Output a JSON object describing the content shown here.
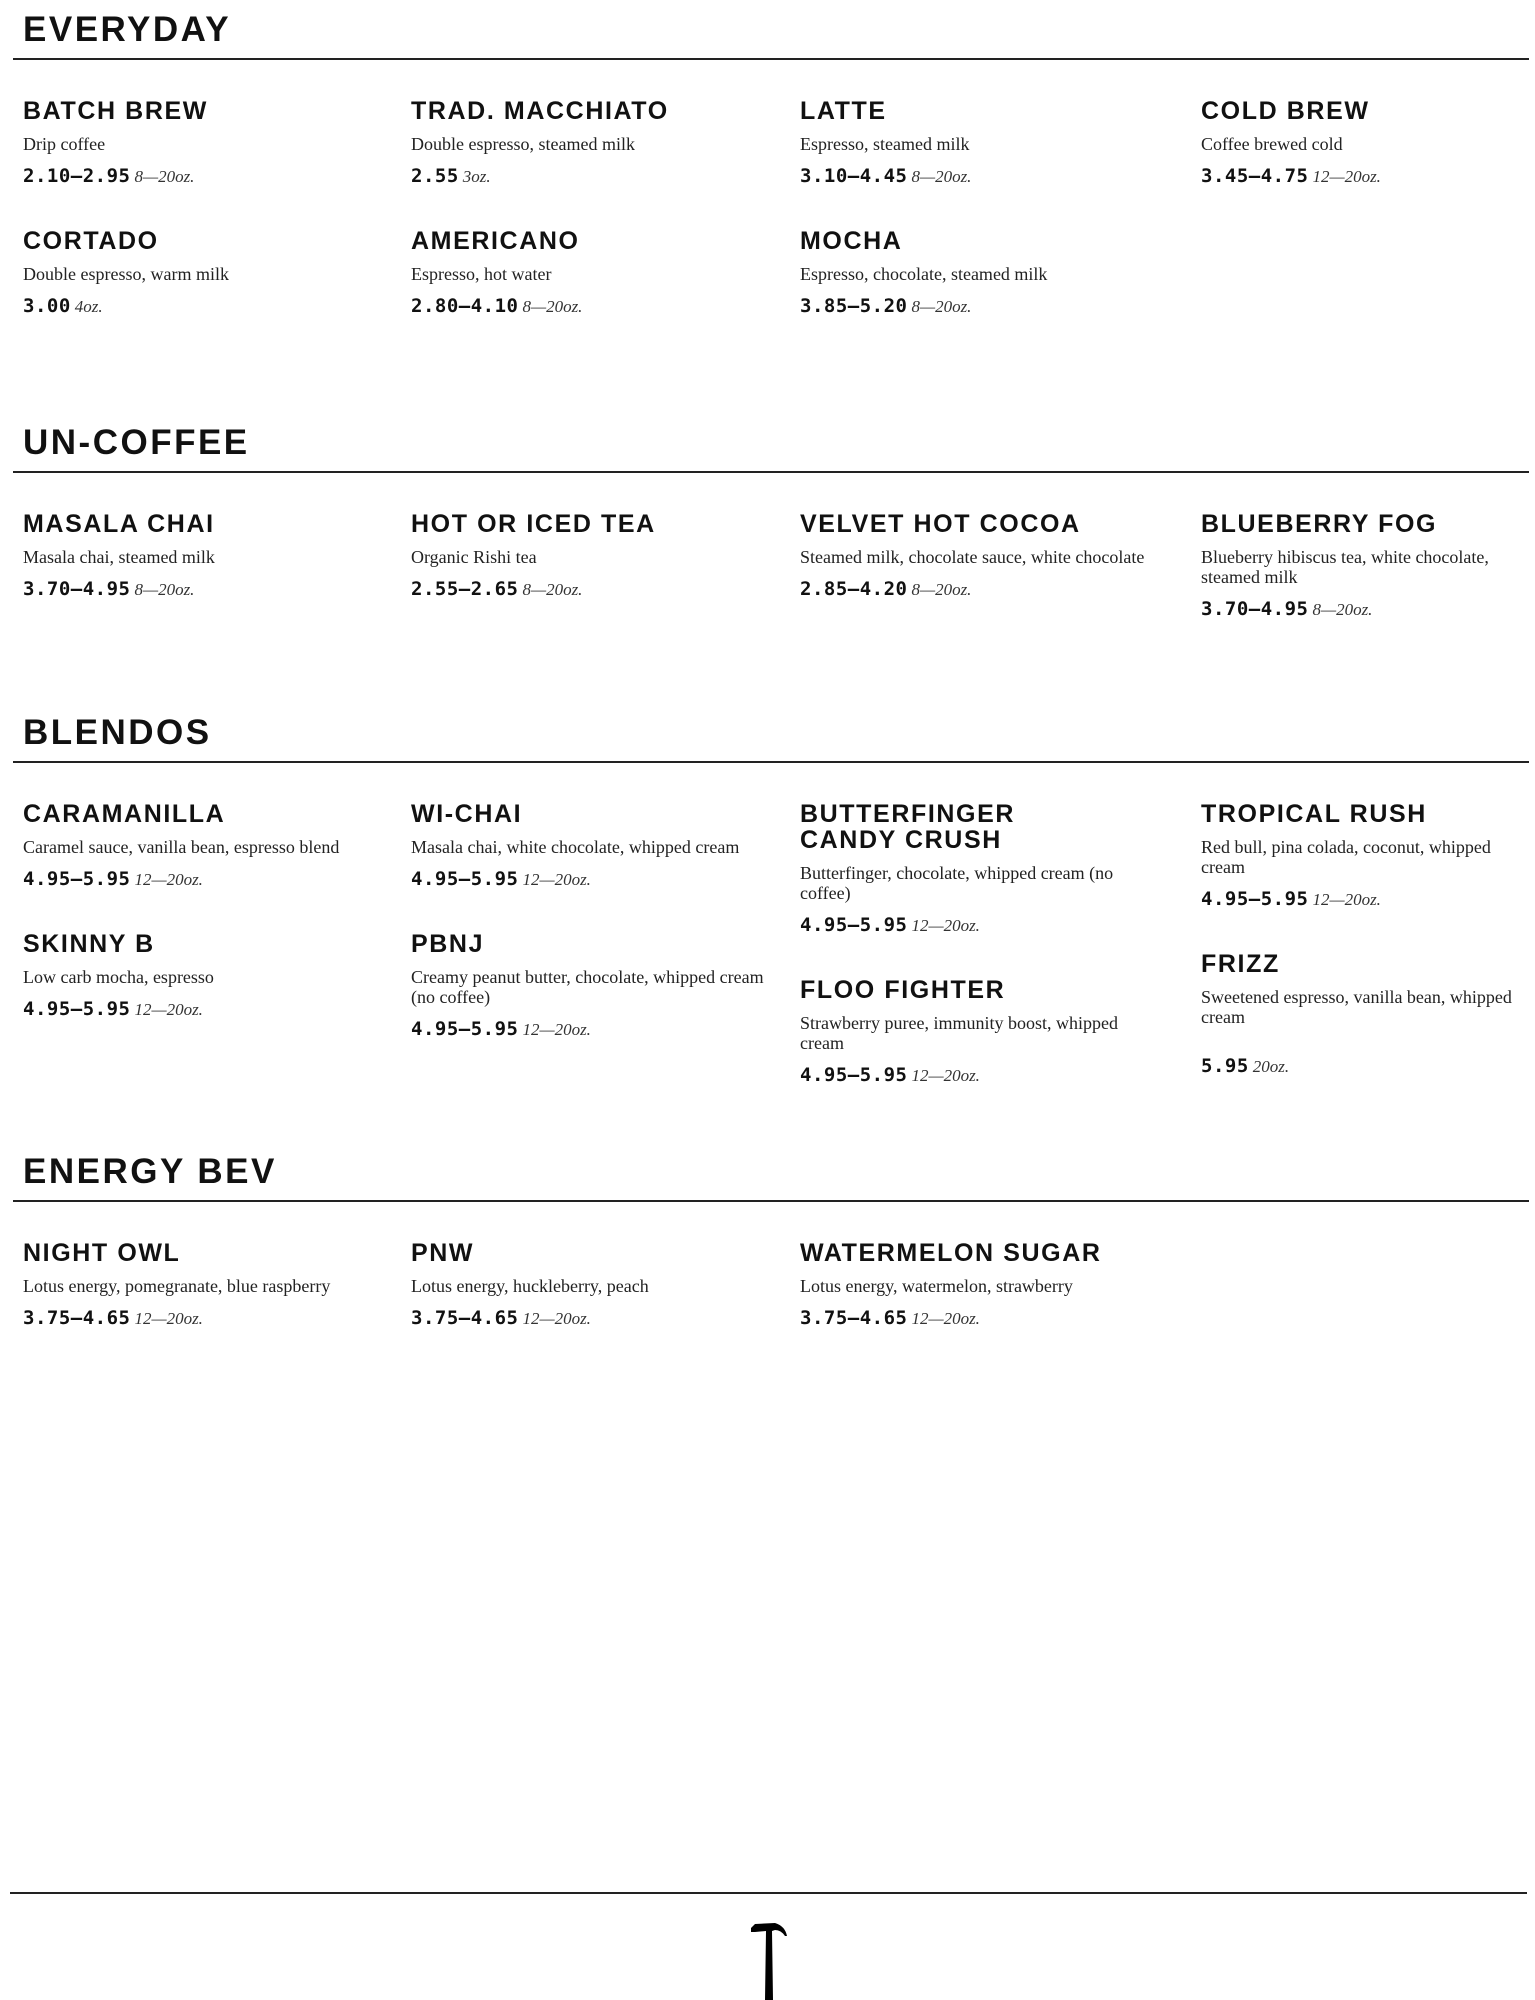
{
  "sections": [
    {
      "title": "EVERYDAY",
      "columns": [
        [
          {
            "name": "BATCH BREW",
            "desc": "Drip coffee",
            "price": "2.10–2.95",
            "size": "8—20oz."
          },
          {
            "name": "CORTADO",
            "desc": "Double espresso, warm milk",
            "price": "3.00",
            "size": "4oz."
          }
        ],
        [
          {
            "name": "TRAD. MACCHIATO",
            "desc": "Double espresso, steamed milk",
            "price": "2.55",
            "size": "3oz."
          },
          {
            "name": "AMERICANO",
            "desc": "Espresso, hot water",
            "price": "2.80–4.10",
            "size": "8—20oz."
          }
        ],
        [
          {
            "name": "LATTE",
            "desc": "Espresso, steamed milk",
            "price": "3.10–4.45",
            "size": "8—20oz."
          },
          {
            "name": "MOCHA",
            "desc": "Espresso, chocolate, steamed milk",
            "price": "3.85–5.20",
            "size": "8—20oz."
          }
        ],
        [
          {
            "name": "COLD BREW",
            "desc": "Coffee brewed cold",
            "price": "3.45–4.75",
            "size": "12—20oz."
          }
        ]
      ]
    },
    {
      "title": "UN-COFFEE",
      "columns": [
        [
          {
            "name": "MASALA CHAI",
            "desc": "Masala chai, steamed milk",
            "price": "3.70–4.95",
            "size": "8—20oz."
          }
        ],
        [
          {
            "name": "HOT OR ICED TEA",
            "desc": "Organic Rishi tea",
            "price": "2.55–2.65",
            "size": "8—20oz."
          }
        ],
        [
          {
            "name": "VELVET HOT COCOA",
            "desc": "Steamed milk, chocolate sauce, white chocolate",
            "price": "2.85–4.20",
            "size": "8—20oz."
          }
        ],
        [
          {
            "name": "BLUEBERRY FOG",
            "desc": "Blueberry hibiscus tea, white chocolate, steamed milk",
            "price": "3.70–4.95",
            "size": "8—20oz."
          }
        ]
      ]
    },
    {
      "title": "BLENDOS",
      "columns": [
        [
          {
            "name": "CARAMANILLA",
            "desc": "Caramel sauce, vanilla bean, espresso blend",
            "price": "4.95–5.95",
            "size": "12—20oz."
          },
          {
            "name": "SKINNY B",
            "desc": "Low carb mocha, espresso",
            "price": "4.95–5.95",
            "size": "12—20oz."
          }
        ],
        [
          {
            "name": "WI-CHAI",
            "desc": "Masala chai, white chocolate, whipped cream",
            "price": "4.95–5.95",
            "size": "12—20oz."
          },
          {
            "name": "PBNJ",
            "desc": "Creamy peanut butter, chocolate, whipped cream (no coffee)",
            "price": "4.95–5.95",
            "size": "12—20oz."
          }
        ],
        [
          {
            "name": "BUTTERFINGER CANDY CRUSH",
            "desc": "Butterfinger, chocolate, whipped cream (no coffee)",
            "price": "4.95–5.95",
            "size": "12—20oz."
          },
          {
            "name": "FLOO FIGHTER",
            "desc": "Strawberry puree, immunity boost, whipped cream",
            "price": "4.95–5.95",
            "size": "12—20oz."
          }
        ],
        [
          {
            "name": "TROPICAL RUSH",
            "desc": "Red bull, pina colada, coconut, whipped cream",
            "price": "4.95–5.95",
            "size": "12—20oz."
          },
          {
            "name": "FRIZZ",
            "desc": "Sweetened espresso, vanilla bean, whipped cream",
            "price": "5.95",
            "size": "20oz."
          }
        ]
      ]
    },
    {
      "title": "ENERGY BEV",
      "columns": [
        [
          {
            "name": "NIGHT OWL",
            "desc": "Lotus energy, pomegranate, blue raspberry",
            "price": "3.75–4.65",
            "size": "12—20oz."
          }
        ],
        [
          {
            "name": "PNW",
            "desc": "Lotus energy, huckleberry, peach",
            "price": "3.75–4.65",
            "size": "12—20oz."
          }
        ],
        [
          {
            "name": "WATERMELON SUGAR",
            "desc": "Lotus energy, watermelon, strawberry",
            "price": "3.75–4.65",
            "size": "12—20oz."
          }
        ]
      ]
    }
  ],
  "footer": {
    "logo_icon": "hammer-icon"
  }
}
